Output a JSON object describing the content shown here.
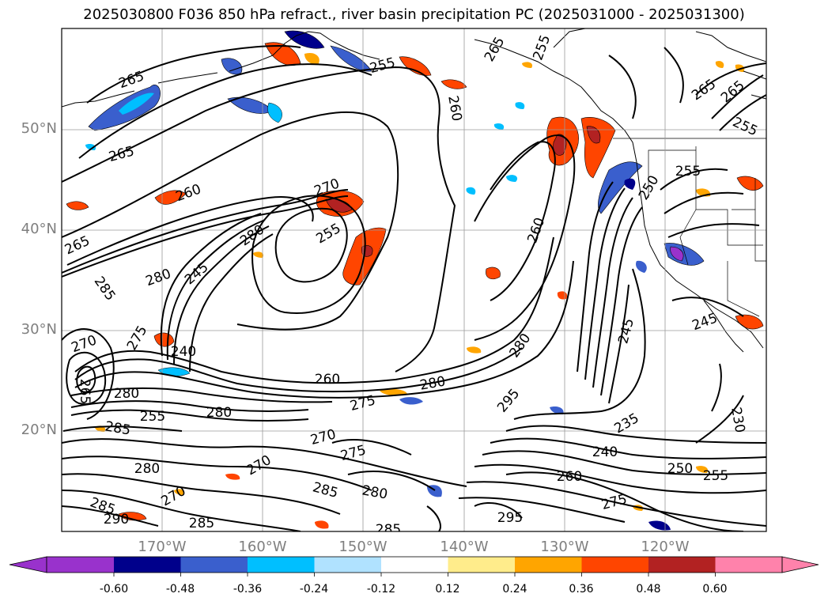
{
  "title": "2025030800 F036 850 hPa refract., river basin precipitation PC (2025031000 - 2025031300)",
  "lat_labels": [
    "50°N",
    "40°N",
    "30°N",
    "20°N"
  ],
  "lon_labels": [
    "170°W",
    "160°W",
    "150°W",
    "140°W",
    "130°W",
    "120°W"
  ],
  "colorbar": {
    "colors": [
      "#9932cc",
      "#00008b",
      "#3a5fcd",
      "#00bfff",
      "#b0e2ff",
      "#ffffff",
      "#ffec8b",
      "#ffa500",
      "#ff4500",
      "#b22222",
      "#ff82ab"
    ],
    "tick_labels": [
      "-0.60",
      "-0.48",
      "-0.36",
      "-0.24",
      "-0.12",
      "0.12",
      "0.24",
      "0.36",
      "0.48",
      "0.60"
    ]
  },
  "contour_labels": [
    "265",
    "265",
    "260",
    "255",
    "260",
    "265",
    "270",
    "280",
    "255",
    "280",
    "245",
    "285",
    "275",
    "240",
    "260",
    "280",
    "270",
    "265",
    "275",
    "255",
    "280",
    "285",
    "280",
    "270",
    "285",
    "290",
    "285",
    "285",
    "280",
    "270",
    "275",
    "280",
    "270",
    "285",
    "295",
    "260",
    "280",
    "245",
    "235",
    "240",
    "250",
    "255",
    "260",
    "275",
    "295",
    "230",
    "255",
    "265",
    "265",
    "265",
    "255",
    "255",
    "250",
    "245"
  ]
}
